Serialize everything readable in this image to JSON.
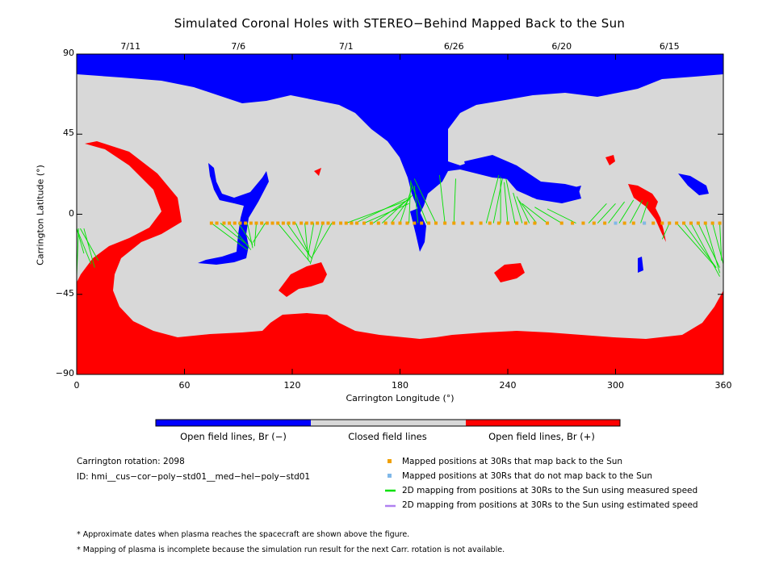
{
  "title": "Simulated Coronal Holes with STEREO−Behind Mapped Back to the Sun",
  "chart_data": {
    "type": "map",
    "xlabel": "Carrington Longitude (°)",
    "ylabel": "Carrington Latitude (°)",
    "xlim": [
      0,
      360
    ],
    "ylim": [
      -90,
      90
    ],
    "x_ticks": [
      "0",
      "60",
      "120",
      "180",
      "240",
      "300",
      "360"
    ],
    "y_ticks": [
      "90",
      "45",
      "0",
      "−45",
      "−90"
    ],
    "top_dates": [
      {
        "label": "7/11",
        "lon": 30
      },
      {
        "label": "7/6",
        "lon": 90
      },
      {
        "label": "7/1",
        "lon": 150
      },
      {
        "label": "6/26",
        "lon": 210
      },
      {
        "label": "6/20",
        "lon": 270
      },
      {
        "label": "6/15",
        "lon": 330
      }
    ],
    "colors": {
      "negative": "#0000ff",
      "closed": "#d8d8d8",
      "positive": "#ff0000",
      "mapped": "#f0a000",
      "unmapped": "#80b8e8",
      "measured": "#00e000",
      "estimated": "#b080f0"
    },
    "colorbar": [
      "Open field lines, Br (−)",
      "Closed field lines",
      "Open field lines, Br (+)"
    ],
    "mapped_points_lat": -5,
    "mapped_points_lon": [
      75,
      78,
      82,
      85,
      88,
      91,
      94,
      97,
      100,
      103,
      106,
      109,
      112,
      115,
      118,
      121,
      125,
      128,
      131,
      134,
      137,
      140,
      143,
      147,
      150,
      153,
      156,
      160,
      164,
      168,
      172,
      176,
      180,
      184,
      188,
      192,
      196,
      200,
      205,
      210,
      215,
      220,
      225,
      230,
      235,
      240,
      245,
      250,
      255,
      262,
      270,
      276,
      282,
      288,
      294,
      300,
      305,
      310,
      316,
      321,
      326,
      330,
      334,
      338,
      342,
      346,
      350,
      354,
      358
    ],
    "unmapped_points_lon": [
      300,
      316
    ],
    "mapping_lines_measured": [
      [
        0,
        -8,
        4,
        -22
      ],
      [
        0,
        -8,
        8,
        -28
      ],
      [
        2,
        -8,
        12,
        -26
      ],
      [
        4,
        -8,
        10,
        -30
      ],
      [
        1,
        -8,
        0,
        -35
      ],
      [
        75,
        -5,
        95,
        -20
      ],
      [
        80,
        -5,
        96,
        -18
      ],
      [
        85,
        -5,
        97,
        -20
      ],
      [
        90,
        -5,
        98,
        -17
      ],
      [
        95,
        -5,
        98,
        -19
      ],
      [
        100,
        -5,
        99,
        -18
      ],
      [
        105,
        -5,
        98,
        -16
      ],
      [
        112,
        -5,
        130,
        -27
      ],
      [
        117,
        -5,
        131,
        -25
      ],
      [
        122,
        -5,
        130,
        -24
      ],
      [
        127,
        -5,
        129,
        -26
      ],
      [
        132,
        -5,
        129,
        -22
      ],
      [
        137,
        -5,
        130,
        -28
      ],
      [
        142,
        -5,
        131,
        -24
      ],
      [
        150,
        -5,
        185,
        8
      ],
      [
        155,
        -5,
        184,
        9
      ],
      [
        160,
        -5,
        185,
        6
      ],
      [
        165,
        -5,
        183,
        7
      ],
      [
        170,
        -5,
        186,
        10
      ],
      [
        175,
        -5,
        187,
        11
      ],
      [
        180,
        -5,
        187,
        16
      ],
      [
        185,
        -5,
        186,
        19
      ],
      [
        190,
        -5,
        188,
        16
      ],
      [
        195,
        -5,
        186,
        18
      ],
      [
        200,
        -5,
        188,
        20
      ],
      [
        205,
        -5,
        202,
        22
      ],
      [
        210,
        -5,
        211,
        20
      ],
      [
        228,
        -5,
        235,
        22
      ],
      [
        232,
        -5,
        237,
        20
      ],
      [
        236,
        -5,
        236,
        21
      ],
      [
        240,
        -5,
        238,
        18
      ],
      [
        244,
        -5,
        239,
        20
      ],
      [
        248,
        -5,
        243,
        12
      ],
      [
        252,
        -5,
        245,
        10
      ],
      [
        256,
        -5,
        246,
        8
      ],
      [
        262,
        -5,
        248,
        6
      ],
      [
        270,
        -5,
        255,
        4
      ],
      [
        278,
        -5,
        262,
        3
      ],
      [
        285,
        -5,
        295,
        6
      ],
      [
        290,
        -5,
        300,
        6
      ],
      [
        296,
        -5,
        305,
        7
      ],
      [
        302,
        -5,
        310,
        8
      ],
      [
        308,
        -5,
        315,
        8
      ],
      [
        314,
        -5,
        318,
        7
      ],
      [
        330,
        -5,
        326,
        -14
      ],
      [
        334,
        -5,
        356,
        -30
      ],
      [
        338,
        -5,
        356,
        -30
      ],
      [
        342,
        -5,
        358,
        -35
      ],
      [
        346,
        -5,
        358,
        -30
      ],
      [
        350,
        -5,
        358,
        -33
      ],
      [
        354,
        -5,
        360,
        -28
      ],
      [
        358,
        -5,
        359,
        -26
      ]
    ],
    "mapping_lines_estimated": []
  },
  "info": {
    "carrington_rotation": "Carrington rotation: 2098",
    "id": "ID: hmi__cus−cor−poly−std01__med−hel−poly−std01"
  },
  "legend": [
    "Mapped positions at 30Rs that map back to the Sun",
    "Mapped positions at 30Rs that do not map back to the Sun",
    "2D mapping from positions at 30Rs to the Sun using measured speed",
    "2D mapping from positions at 30Rs to the Sun using estimated speed"
  ],
  "notes": [
    "* Approximate dates when plasma reaches the spacecraft are shown above the figure.",
    "* Mapping of plasma is incomplete because the simulation run result for the next Carr. rotation is not available."
  ]
}
